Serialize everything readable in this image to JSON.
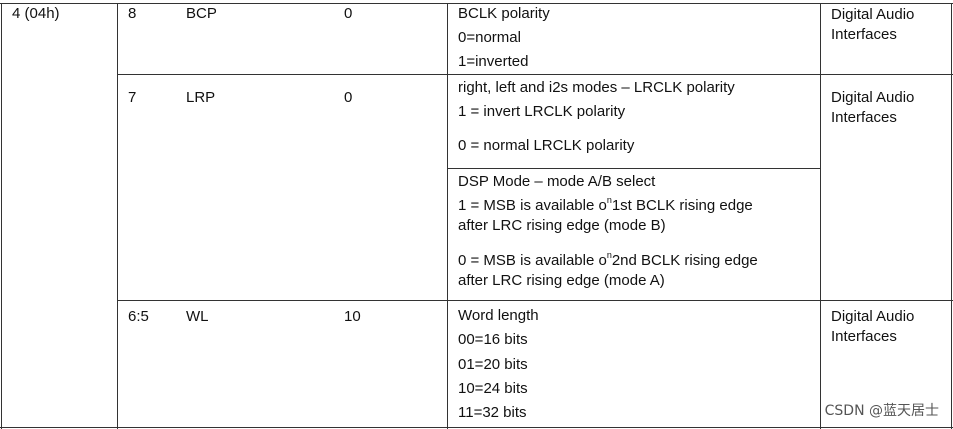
{
  "table": {
    "register": "4 (04h)",
    "rows": [
      {
        "bit": "8",
        "name": "BCP",
        "default": "0",
        "descriptions": [
          {
            "lines": [
              "BCLK polarity",
              "0=normal",
              "1=inverted"
            ]
          }
        ],
        "function": "Digital Audio Interfaces"
      },
      {
        "bit": "7",
        "name": "LRP",
        "default": "0",
        "descriptions": [
          {
            "lines": [
              "right, left and i2s modes – LRCLK polarity",
              "1 = invert LRCLK polarity",
              "0 = normal LRCLK polarity"
            ]
          },
          {
            "lines": [
              "DSP Mode – mode A/B select",
              {
                "before": "1 = MSB is available o",
                "sup": "n",
                "after": "1st BCLK rising edge"
              },
              "after LRC rising edge (mode B)",
              {
                "before": "0 = MSB is available o",
                "sup": "n",
                "after": "2nd BCLK rising edge"
              },
              "after LRC rising edge (mode A)"
            ]
          }
        ],
        "function": "Digital Audio Interfaces"
      },
      {
        "bit": "6:5",
        "name": "WL",
        "default": "10",
        "descriptions": [
          {
            "lines": [
              "Word length",
              "00=16 bits",
              "01=20 bits",
              "10=24 bits",
              "11=32 bits"
            ]
          }
        ],
        "function": "Digital Audio Interfaces"
      }
    ]
  },
  "watermark": "CSDN @蓝天居士"
}
